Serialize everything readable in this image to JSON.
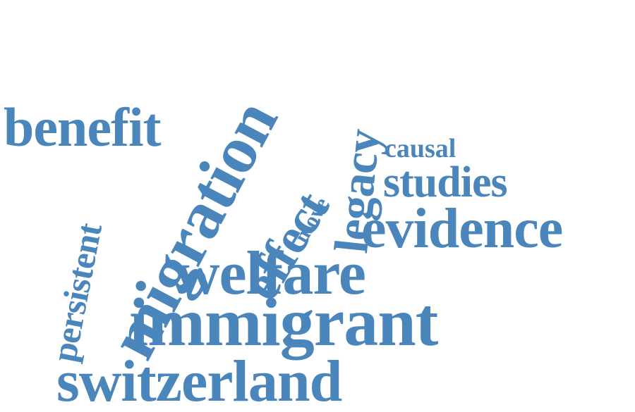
{
  "word_cloud": {
    "color": "#4a86bb",
    "words": [
      {
        "id": "migration",
        "text": "migration"
      },
      {
        "id": "immigrant",
        "text": "immigrant"
      },
      {
        "id": "switzerland",
        "text": "switzerland"
      },
      {
        "id": "welfare",
        "text": "welfare"
      },
      {
        "id": "evidence",
        "text": "evidence"
      },
      {
        "id": "benefit",
        "text": "benefit"
      },
      {
        "id": "effect",
        "text": "effect"
      },
      {
        "id": "legacy",
        "text": "legacy"
      },
      {
        "id": "studies",
        "text": "studies"
      },
      {
        "id": "persistent",
        "text": "persistent"
      },
      {
        "id": "causal",
        "text": "causal"
      },
      {
        "id": "move",
        "text": "move"
      }
    ]
  }
}
